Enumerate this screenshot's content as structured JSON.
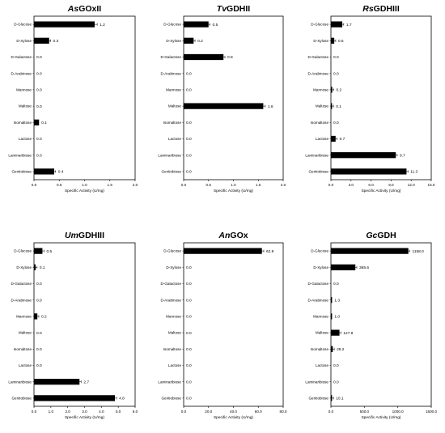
{
  "chart_data": [
    {
      "type": "bar",
      "orientation": "horizontal",
      "title_italic": "As",
      "title_rest": "GOxII",
      "categories": [
        "D-Glucose",
        "D-Xylose",
        "D-Galactose",
        "D-Arabinose",
        "Mannose",
        "Maltose",
        "Isomaltose",
        "Lactose",
        "Laminaribiose",
        "Gentiobiose"
      ],
      "values": [
        1.2,
        0.3,
        0.0,
        0.0,
        0.0,
        0.0,
        0.1,
        0.0,
        0.0,
        0.4
      ],
      "labels": [
        "1.2",
        "0.3",
        "0.0",
        "0.0",
        "0.0",
        "0.0",
        "0.1",
        "0.0",
        "0.0",
        "0.4"
      ],
      "errors": [
        0.05,
        0.02,
        0,
        0,
        0,
        0,
        0,
        0,
        0,
        0.02
      ],
      "xlim": [
        0,
        2.0
      ],
      "ticks": [
        "0.0",
        "0.5",
        "1.0",
        "1.5",
        "2.0"
      ],
      "xlabel": "Specific Activity (U/mg)"
    },
    {
      "type": "bar",
      "orientation": "horizontal",
      "title_italic": "Tv",
      "title_rest": "GDHII",
      "categories": [
        "D-Glucose",
        "D-Xylose",
        "D-Galactose",
        "D-Arabinose",
        "Mannose",
        "Maltose",
        "Isomaltose",
        "Lactose",
        "Laminaribiose",
        "Gentiobiose"
      ],
      "values": [
        0.5,
        0.2,
        0.8,
        0.0,
        0.0,
        1.6,
        0.0,
        0.0,
        0.0,
        0.0
      ],
      "labels": [
        "0.5",
        "0.2",
        "0.8",
        "0.0",
        "0.0",
        "1.6",
        "0.0",
        "0.0",
        "0.0",
        "0.0"
      ],
      "errors": [
        0.03,
        0.02,
        0.03,
        0,
        0,
        0.04,
        0.01,
        0,
        0,
        0.01
      ],
      "xlim": [
        0,
        2.0
      ],
      "ticks": [
        "0.0",
        "0.5",
        "1.0",
        "1.5",
        "2.0"
      ],
      "xlabel": "Specific Activity (U/mg)"
    },
    {
      "type": "bar",
      "orientation": "horizontal",
      "title_italic": "Rs",
      "title_rest": "GDHIII",
      "categories": [
        "D-Glucose",
        "D-Xylose",
        "D-Galactose",
        "D-Arabinose",
        "Mannose",
        "Maltose",
        "Isomaltose",
        "Lactose",
        "Laminaribiose",
        "Gentiobiose"
      ],
      "values": [
        1.7,
        0.5,
        0.0,
        0.0,
        0.2,
        0.1,
        0.0,
        0.7,
        9.7,
        11.3
      ],
      "labels": [
        "1.7",
        "0.5",
        "0.0",
        "0.0",
        "0.2",
        "0.1",
        "0.0",
        "0.7",
        "9.7",
        "11.3"
      ],
      "errors": [
        0.05,
        0.05,
        0,
        0,
        0.02,
        0.02,
        0,
        0.05,
        0.15,
        0.2
      ],
      "xlim": [
        0,
        15.0
      ],
      "ticks": [
        "0.0",
        "3.0",
        "6.0",
        "9.0",
        "12.0",
        "15.0"
      ],
      "xlabel": "Specific Activity (U/mg)"
    },
    {
      "type": "bar",
      "orientation": "horizontal",
      "title_italic": "Um",
      "title_rest": "GDHIII",
      "categories": [
        "D-Glucose",
        "D-Xylose",
        "D-Galactose",
        "D-Arabinose",
        "Mannose",
        "Maltose",
        "Isomaltose",
        "Lactose",
        "Laminaribiose",
        "Gentiobiose"
      ],
      "values": [
        0.5,
        0.1,
        0.0,
        0.0,
        0.2,
        0.0,
        0.0,
        0.0,
        2.7,
        4.8
      ],
      "labels": [
        "0.5",
        "0.1",
        "0.0",
        "0.0",
        "0.2",
        "0.0",
        "0.0",
        "0.0",
        "2.7",
        "4.8"
      ],
      "errors": [
        0.1,
        0.02,
        0,
        0,
        0.02,
        0,
        0,
        0,
        0.1,
        0.1
      ],
      "xlim": [
        0,
        6.0
      ],
      "ticks": [
        "0.0",
        "1.0",
        "2.0",
        "3.0",
        "4.0",
        "5.0",
        "6.0"
      ],
      "xlabel": "Specific Activity (U/mg)"
    },
    {
      "type": "bar",
      "orientation": "horizontal",
      "title_italic": "An",
      "title_rest": "GOx",
      "categories": [
        "D-Glucose",
        "D-Xylose",
        "D-Galactose",
        "D-Arabinose",
        "Mannose",
        "Maltose",
        "Isomaltose",
        "Lactose",
        "Laminaribiose",
        "Gentiobiose"
      ],
      "values": [
        62.9,
        0.0,
        0.0,
        0.0,
        0.0,
        0.0,
        0.0,
        0.0,
        0.0,
        0.0
      ],
      "labels": [
        "62.9",
        "0.0",
        "0.0",
        "0.0",
        "0.0",
        "0.0",
        "0.0",
        "0.0",
        "0.0",
        "0.0"
      ],
      "errors": [
        1.5,
        0,
        0,
        0,
        0,
        0,
        0,
        0,
        0,
        0
      ],
      "xlim": [
        0,
        80.0
      ],
      "ticks": [
        "0.0",
        "20.0",
        "40.0",
        "60.0",
        "80.0"
      ],
      "xlabel": "Specific Activity (U/mg)"
    },
    {
      "type": "bar",
      "orientation": "horizontal",
      "title_italic": "Gc",
      "title_rest": "GDH",
      "categories": [
        "D-Glucose",
        "D-Xylose",
        "D-Galactose",
        "D-Arabinose",
        "Mannose",
        "Maltose",
        "Isomaltose",
        "Lactose",
        "Laminaribiose",
        "Gentiobiose"
      ],
      "values": [
        1158.0,
        365.6,
        0.0,
        1.3,
        1.0,
        127.8,
        28.2,
        0.0,
        0.0,
        10.1
      ],
      "labels": [
        "1158.0",
        "365.6",
        "0.0",
        "1.3",
        "1.0",
        "127.8",
        "28.2",
        "0.0",
        "0.0",
        "10.1"
      ],
      "errors": [
        15,
        8,
        0,
        0,
        0,
        4,
        2,
        0,
        0,
        1
      ],
      "xlim": [
        0,
        1500.0
      ],
      "ticks": [
        "0.0",
        "500.0",
        "1000.0",
        "1500.0"
      ],
      "xlabel": "Specific Activity (U/mg)"
    }
  ]
}
